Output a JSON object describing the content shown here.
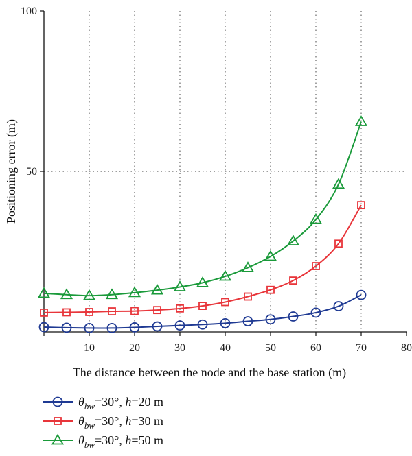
{
  "chart_data": {
    "type": "line",
    "title": "",
    "xlabel": "The distance between the node and the base station (m)",
    "ylabel": "Positioning error (m)",
    "xlim": [
      0,
      80
    ],
    "ylim": [
      0,
      100
    ],
    "x_ticks": [
      10,
      20,
      30,
      40,
      50,
      60,
      70,
      80
    ],
    "y_ticks": [
      50,
      100
    ],
    "x_tick_labels": [
      "10",
      "20",
      "30",
      "40",
      "50",
      "60",
      "70",
      "80"
    ],
    "y_tick_labels": [
      "50",
      "100"
    ],
    "grid": "dotted, at major ticks",
    "legend_position": "below plot, left",
    "x": [
      0,
      5,
      10,
      15,
      20,
      25,
      30,
      35,
      40,
      45,
      50,
      55,
      60,
      65,
      70
    ],
    "series": [
      {
        "legend_symbol": "θ",
        "legend_subscript": "bw",
        "legend_mid": "=30°, ",
        "legend_var": "h",
        "legend_tail": "=20 m",
        "marker": "circle",
        "color": "#1f3a93",
        "values": [
          1.5,
          1.3,
          1.2,
          1.2,
          1.4,
          1.7,
          2.0,
          2.3,
          2.7,
          3.3,
          3.9,
          4.8,
          6.0,
          8.0,
          11.5
        ]
      },
      {
        "legend_symbol": "θ",
        "legend_subscript": "bw",
        "legend_mid": "=30°, ",
        "legend_var": "h",
        "legend_tail": "=30 m",
        "marker": "square",
        "color": "#e8353a",
        "values": [
          6.0,
          6.1,
          6.2,
          6.4,
          6.5,
          6.8,
          7.3,
          8.1,
          9.3,
          11.0,
          13.1,
          16.0,
          20.5,
          27.5,
          39.5
        ]
      },
      {
        "legend_symbol": "θ",
        "legend_subscript": "bw",
        "legend_mid": "=30°, ",
        "legend_var": "h",
        "legend_tail": "=50 m",
        "marker": "triangle",
        "color": "#1a9a3a",
        "values": [
          12.0,
          11.6,
          11.3,
          11.6,
          12.2,
          13.0,
          14.0,
          15.3,
          17.3,
          20.0,
          23.5,
          28.3,
          35.0,
          46.0,
          65.5
        ]
      }
    ]
  }
}
